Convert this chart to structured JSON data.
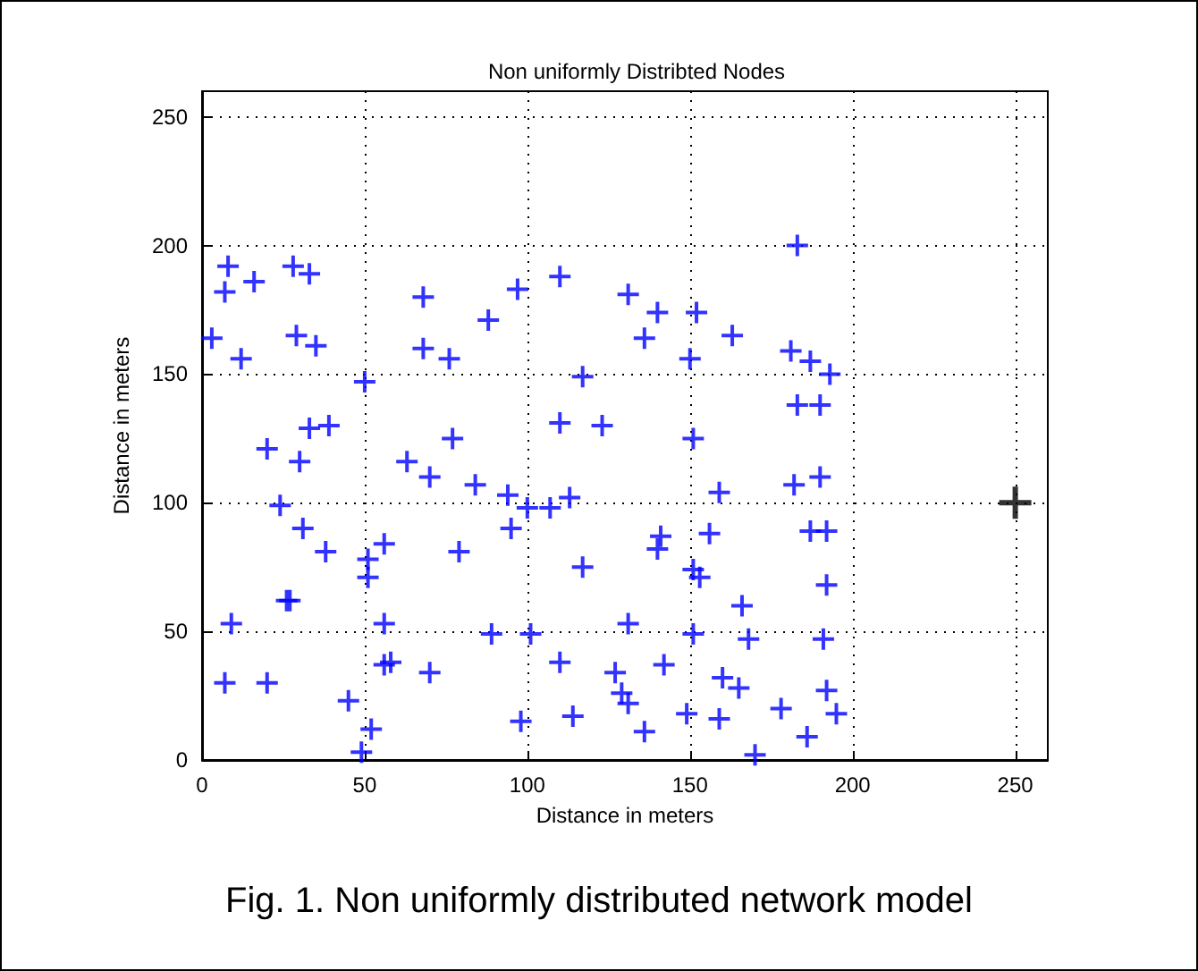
{
  "chart_data": {
    "type": "scatter",
    "title": "Non uniformly Distribted Nodes",
    "xlabel": "Distance in meters",
    "ylabel": "Distance in meters",
    "annotations": [
      "Fig. 1. Non uniformly distributed network model"
    ],
    "xlim": [
      0,
      260
    ],
    "ylim": [
      0,
      260
    ],
    "xticks": [
      0,
      50,
      100,
      150,
      200,
      250
    ],
    "yticks": [
      0,
      50,
      100,
      150,
      200,
      250
    ],
    "grid": true,
    "marker": "cross",
    "series": [
      {
        "color": "#0000ff",
        "x": [
          8,
          7,
          16,
          28,
          33,
          3,
          12,
          29,
          35,
          50,
          68,
          68,
          76,
          88,
          97,
          20,
          30,
          33,
          39,
          63,
          70,
          77,
          84,
          94,
          110,
          131,
          140,
          152,
          136,
          150,
          163,
          183,
          181,
          187,
          193,
          117,
          110,
          123,
          151,
          183,
          190,
          113,
          159,
          182,
          190,
          24,
          31,
          38,
          26,
          27,
          9,
          7,
          20,
          45,
          52,
          49,
          51,
          56,
          51,
          56,
          56,
          58,
          70,
          79,
          95,
          100,
          89,
          101,
          98,
          107,
          187,
          192,
          156,
          141,
          140,
          117,
          151,
          153,
          166,
          192,
          131,
          151,
          168,
          191,
          110,
          127,
          142,
          160,
          165,
          192,
          129,
          131,
          178,
          195,
          114,
          149,
          159,
          136,
          186,
          170
        ],
        "values": [
          192,
          182,
          186,
          192,
          189,
          164,
          156,
          165,
          161,
          147,
          180,
          160,
          156,
          171,
          183,
          121,
          116,
          129,
          130,
          116,
          110,
          125,
          107,
          103,
          188,
          181,
          174,
          174,
          164,
          156,
          165,
          200,
          159,
          155,
          150,
          149,
          131,
          130,
          125,
          138,
          138,
          102,
          104,
          107,
          110,
          99,
          90,
          81,
          62,
          62,
          53,
          30,
          30,
          23,
          12,
          3,
          78,
          84,
          71,
          53,
          37,
          38,
          34,
          81,
          90,
          98,
          49,
          49,
          15,
          98,
          89,
          89,
          88,
          87,
          82,
          75,
          74,
          71,
          60,
          68,
          53,
          49,
          47,
          47,
          38,
          34,
          37,
          32,
          28,
          27,
          26,
          22,
          20,
          18,
          17,
          18,
          16,
          11,
          9,
          2
        ]
      },
      {
        "color": "#000000",
        "x": [
          250
        ],
        "values": [
          100
        ]
      }
    ]
  }
}
